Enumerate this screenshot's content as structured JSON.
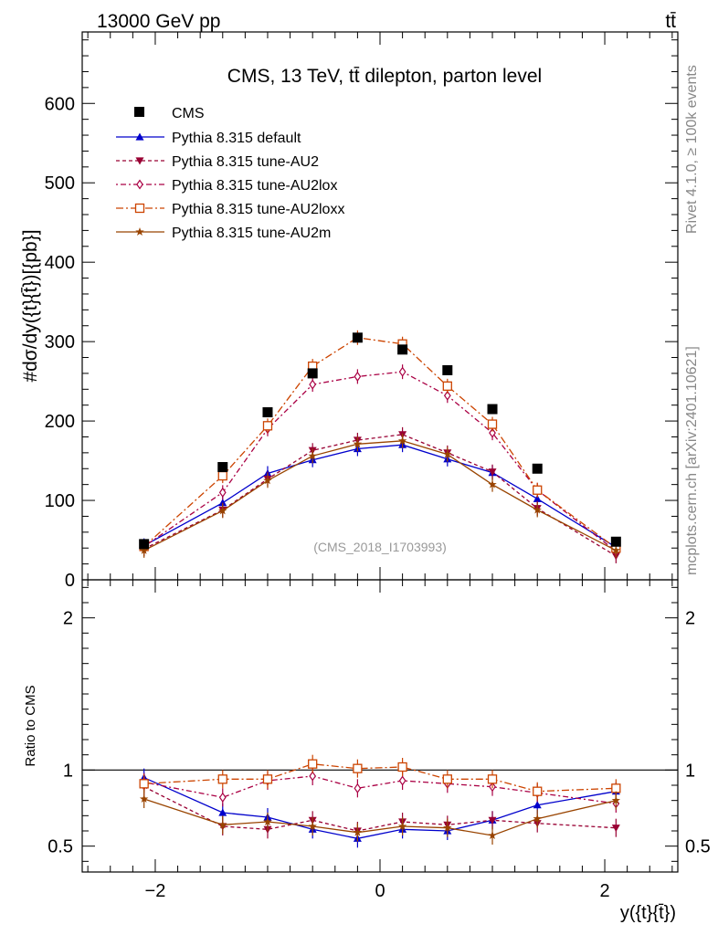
{
  "header": {
    "energy_label": "13000 GeV pp",
    "process_label": "tt̄"
  },
  "side_labels": {
    "rivet": "Rivet 4.1.0, ≥ 100k events",
    "mcplots": "mcplots.cern.ch [arXiv:2401.10621]"
  },
  "chart_data": {
    "type": "scatter",
    "title": "CMS, 13 TeV, tt̄ dilepton, parton level",
    "watermark": "(CMS_2018_I1703993)",
    "xlabel": "y({t}{t̄})",
    "ylabel": "#dσ/dy({t}{t̄})[{pb}]",
    "ratio_ylabel": "Ratio to CMS",
    "xlim": [
      -2.65,
      2.65
    ],
    "ylim": [
      0,
      690
    ],
    "ratio_ylim": [
      0.33,
      2.25
    ],
    "x_ticks": [
      -2,
      0,
      2
    ],
    "x_tick_labels": [
      "−2",
      "0",
      "2"
    ],
    "y_ticks": [
      0,
      100,
      200,
      300,
      400,
      500,
      600
    ],
    "y_tick_labels": [
      "0",
      "100",
      "200",
      "300",
      "400",
      "500",
      "600"
    ],
    "ratio_ticks": [
      0.5,
      1,
      2
    ],
    "ratio_tick_labels": [
      "0.5",
      "1",
      "2"
    ],
    "x": [
      -2.1,
      -1.4,
      -1.0,
      -0.6,
      -0.2,
      0.2,
      0.6,
      1.0,
      1.4,
      2.1
    ],
    "data": {
      "name": "CMS",
      "values": [
        45,
        142,
        211,
        260,
        305,
        290,
        264,
        215,
        140,
        48
      ]
    },
    "series": [
      {
        "name": "Pythia 8.315 default",
        "color": "#0000cc",
        "dash": "",
        "marker": "triangle-up",
        "values": [
          43,
          97,
          134,
          151,
          165,
          170,
          152,
          135,
          102,
          41
        ],
        "ratio": [
          0.95,
          0.72,
          0.69,
          0.61,
          0.55,
          0.61,
          0.6,
          0.67,
          0.77,
          0.86
        ]
      },
      {
        "name": "Pythia 8.315 tune-AU2",
        "color": "#990033",
        "dash": "4,3",
        "marker": "triangle-down",
        "values": [
          39,
          88,
          127,
          163,
          176,
          183,
          160,
          136,
          90,
          30
        ],
        "ratio": [
          0.89,
          0.63,
          0.61,
          0.67,
          0.6,
          0.66,
          0.64,
          0.67,
          0.65,
          0.62
        ]
      },
      {
        "name": "Pythia 8.315 tune-AU2lox",
        "color": "#aa0044",
        "dash": "2,3,6,3",
        "marker": "diamond-open",
        "values": [
          42,
          110,
          190,
          246,
          256,
          262,
          232,
          185,
          113,
          36
        ],
        "ratio": [
          0.92,
          0.82,
          0.93,
          0.96,
          0.88,
          0.93,
          0.91,
          0.89,
          0.85,
          0.78
        ]
      },
      {
        "name": "Pythia 8.315 tune-AU2loxx",
        "color": "#cc4400",
        "dash": "8,3,2,3",
        "marker": "square-open",
        "values": [
          42,
          131,
          194,
          269,
          305,
          297,
          244,
          196,
          113,
          40
        ],
        "ratio": [
          0.91,
          0.94,
          0.94,
          1.04,
          1.01,
          1.02,
          0.94,
          0.94,
          0.86,
          0.88
        ]
      },
      {
        "name": "Pythia 8.315 tune-AU2m",
        "color": "#994400",
        "dash": "",
        "marker": "star",
        "values": [
          37,
          87,
          125,
          156,
          171,
          175,
          158,
          120,
          88,
          37
        ],
        "ratio": [
          0.81,
          0.64,
          0.66,
          0.63,
          0.59,
          0.63,
          0.62,
          0.57,
          0.68,
          0.8
        ]
      }
    ]
  }
}
